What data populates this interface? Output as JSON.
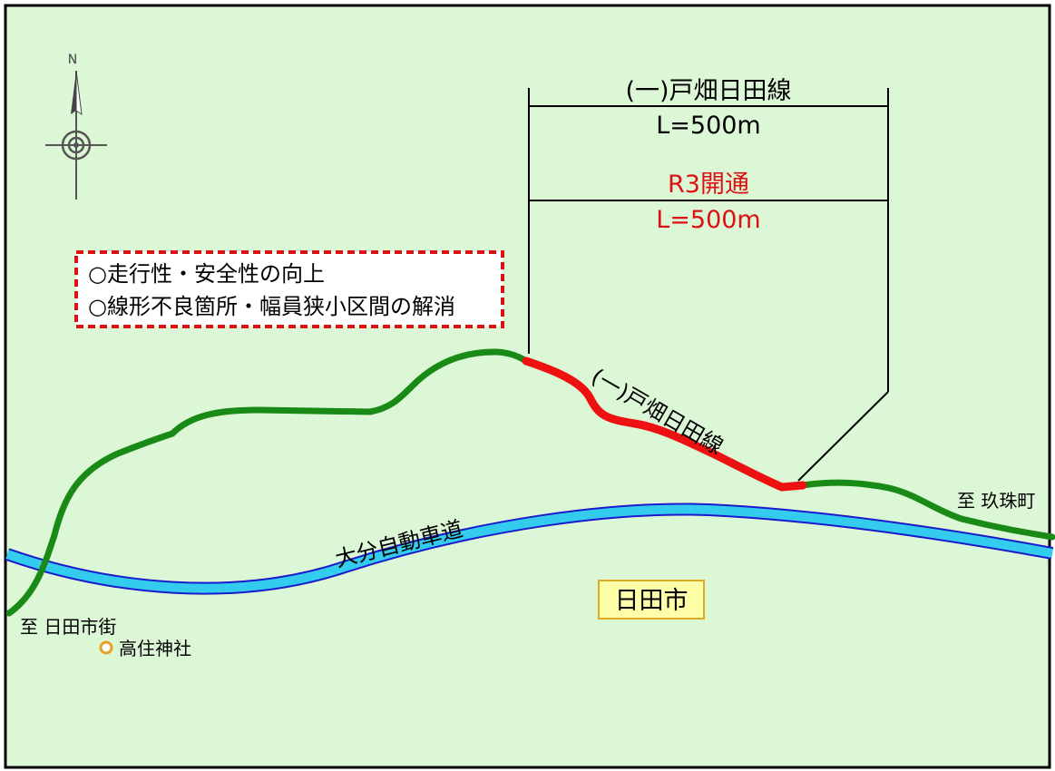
{
  "compass": {
    "north_label": "N"
  },
  "dimension": {
    "route_name": "(一)戸畑日田線",
    "route_length": "L=500m",
    "opened_label": "R3開通",
    "opened_length": "L=500m"
  },
  "benefits": {
    "line1": "○走行性・安全性の向上",
    "line2": "○線形不良箇所・幅員狭小区間の解消"
  },
  "road_labels": {
    "route_on_map": "(一)戸畑日田線",
    "expressway": "大分自動車道"
  },
  "places": {
    "to_kusu": "至 玖珠町",
    "to_hita_city": "至 日田市街",
    "shrine": "高住神社",
    "city": "日田市"
  },
  "colors": {
    "background": "#dcf7d6",
    "border": "#000000",
    "route": "#1a8a16",
    "opened_section": "#ee1111",
    "expressway_fill": "#33ccee",
    "expressway_edge": "#1a1acc",
    "red_text": "#dd1111",
    "city_box_fill": "#ffffaa",
    "city_box_border": "#ddaa22",
    "shrine_marker": "#e8a020"
  }
}
